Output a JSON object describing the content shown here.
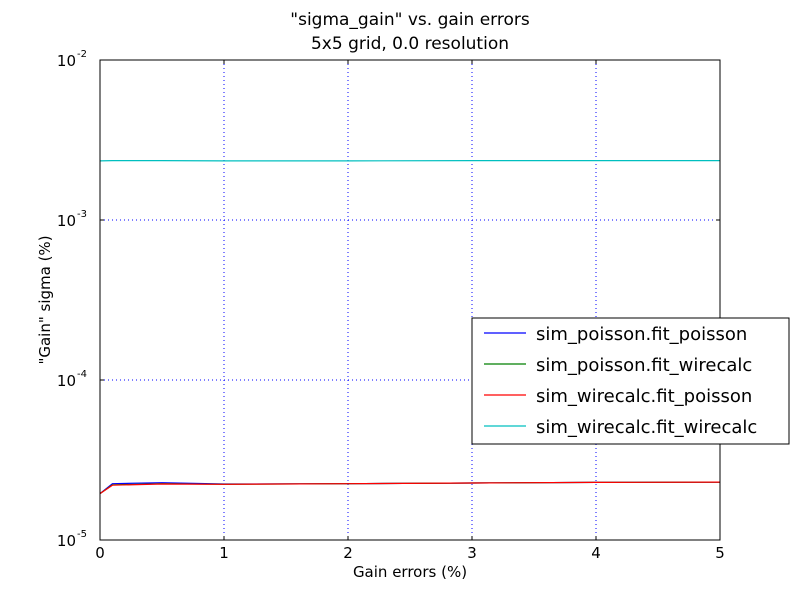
{
  "chart_data": {
    "type": "line",
    "title_line1": "\"sigma_gain\" vs. gain errors",
    "title_line2": "5x5 grid, 0.0 resolution",
    "xlabel": "Gain errors (%)",
    "ylabel": "\"Gain\" sigma (%)",
    "xlim": [
      0,
      5
    ],
    "ylim": [
      1e-05,
      0.01
    ],
    "yscale": "log",
    "grid": true,
    "legend_position": "center-right",
    "x_ticks": [
      {
        "value": 0,
        "label": "0"
      },
      {
        "value": 1,
        "label": "1"
      },
      {
        "value": 2,
        "label": "2"
      },
      {
        "value": 3,
        "label": "3"
      },
      {
        "value": 4,
        "label": "4"
      },
      {
        "value": 5,
        "label": "5"
      }
    ],
    "y_ticks": [
      {
        "value": 1e-05,
        "base": "10",
        "exp": "-5"
      },
      {
        "value": 0.0001,
        "base": "10",
        "exp": "-4"
      },
      {
        "value": 0.001,
        "base": "10",
        "exp": "-3"
      },
      {
        "value": 0.01,
        "base": "10",
        "exp": "-2"
      }
    ],
    "x": [
      0,
      0.1,
      0.5,
      1,
      2,
      3,
      4,
      5
    ],
    "series": [
      {
        "name": "sim_poisson.fit_poisson",
        "color": "#0000ff",
        "values": [
          1.95e-05,
          2.25e-05,
          2.28e-05,
          2.24e-05,
          2.25e-05,
          2.27e-05,
          2.29e-05,
          2.3e-05
        ]
      },
      {
        "name": "sim_poisson.fit_wirecalc",
        "color": "#007f00",
        "values": [
          1.95e-05,
          2.21e-05,
          2.25e-05,
          2.23e-05,
          2.25e-05,
          2.27e-05,
          2.29e-05,
          2.3e-05
        ]
      },
      {
        "name": "sim_wirecalc.fit_poisson",
        "color": "#ff0000",
        "values": [
          1.95e-05,
          2.2e-05,
          2.24e-05,
          2.23e-05,
          2.25e-05,
          2.27e-05,
          2.29e-05,
          2.3e-05
        ]
      },
      {
        "name": "sim_wirecalc.fit_wirecalc",
        "color": "#00bfbf",
        "values": [
          0.00234,
          0.00235,
          0.00235,
          0.00234,
          0.00234,
          0.00235,
          0.00235,
          0.00235
        ]
      }
    ]
  }
}
